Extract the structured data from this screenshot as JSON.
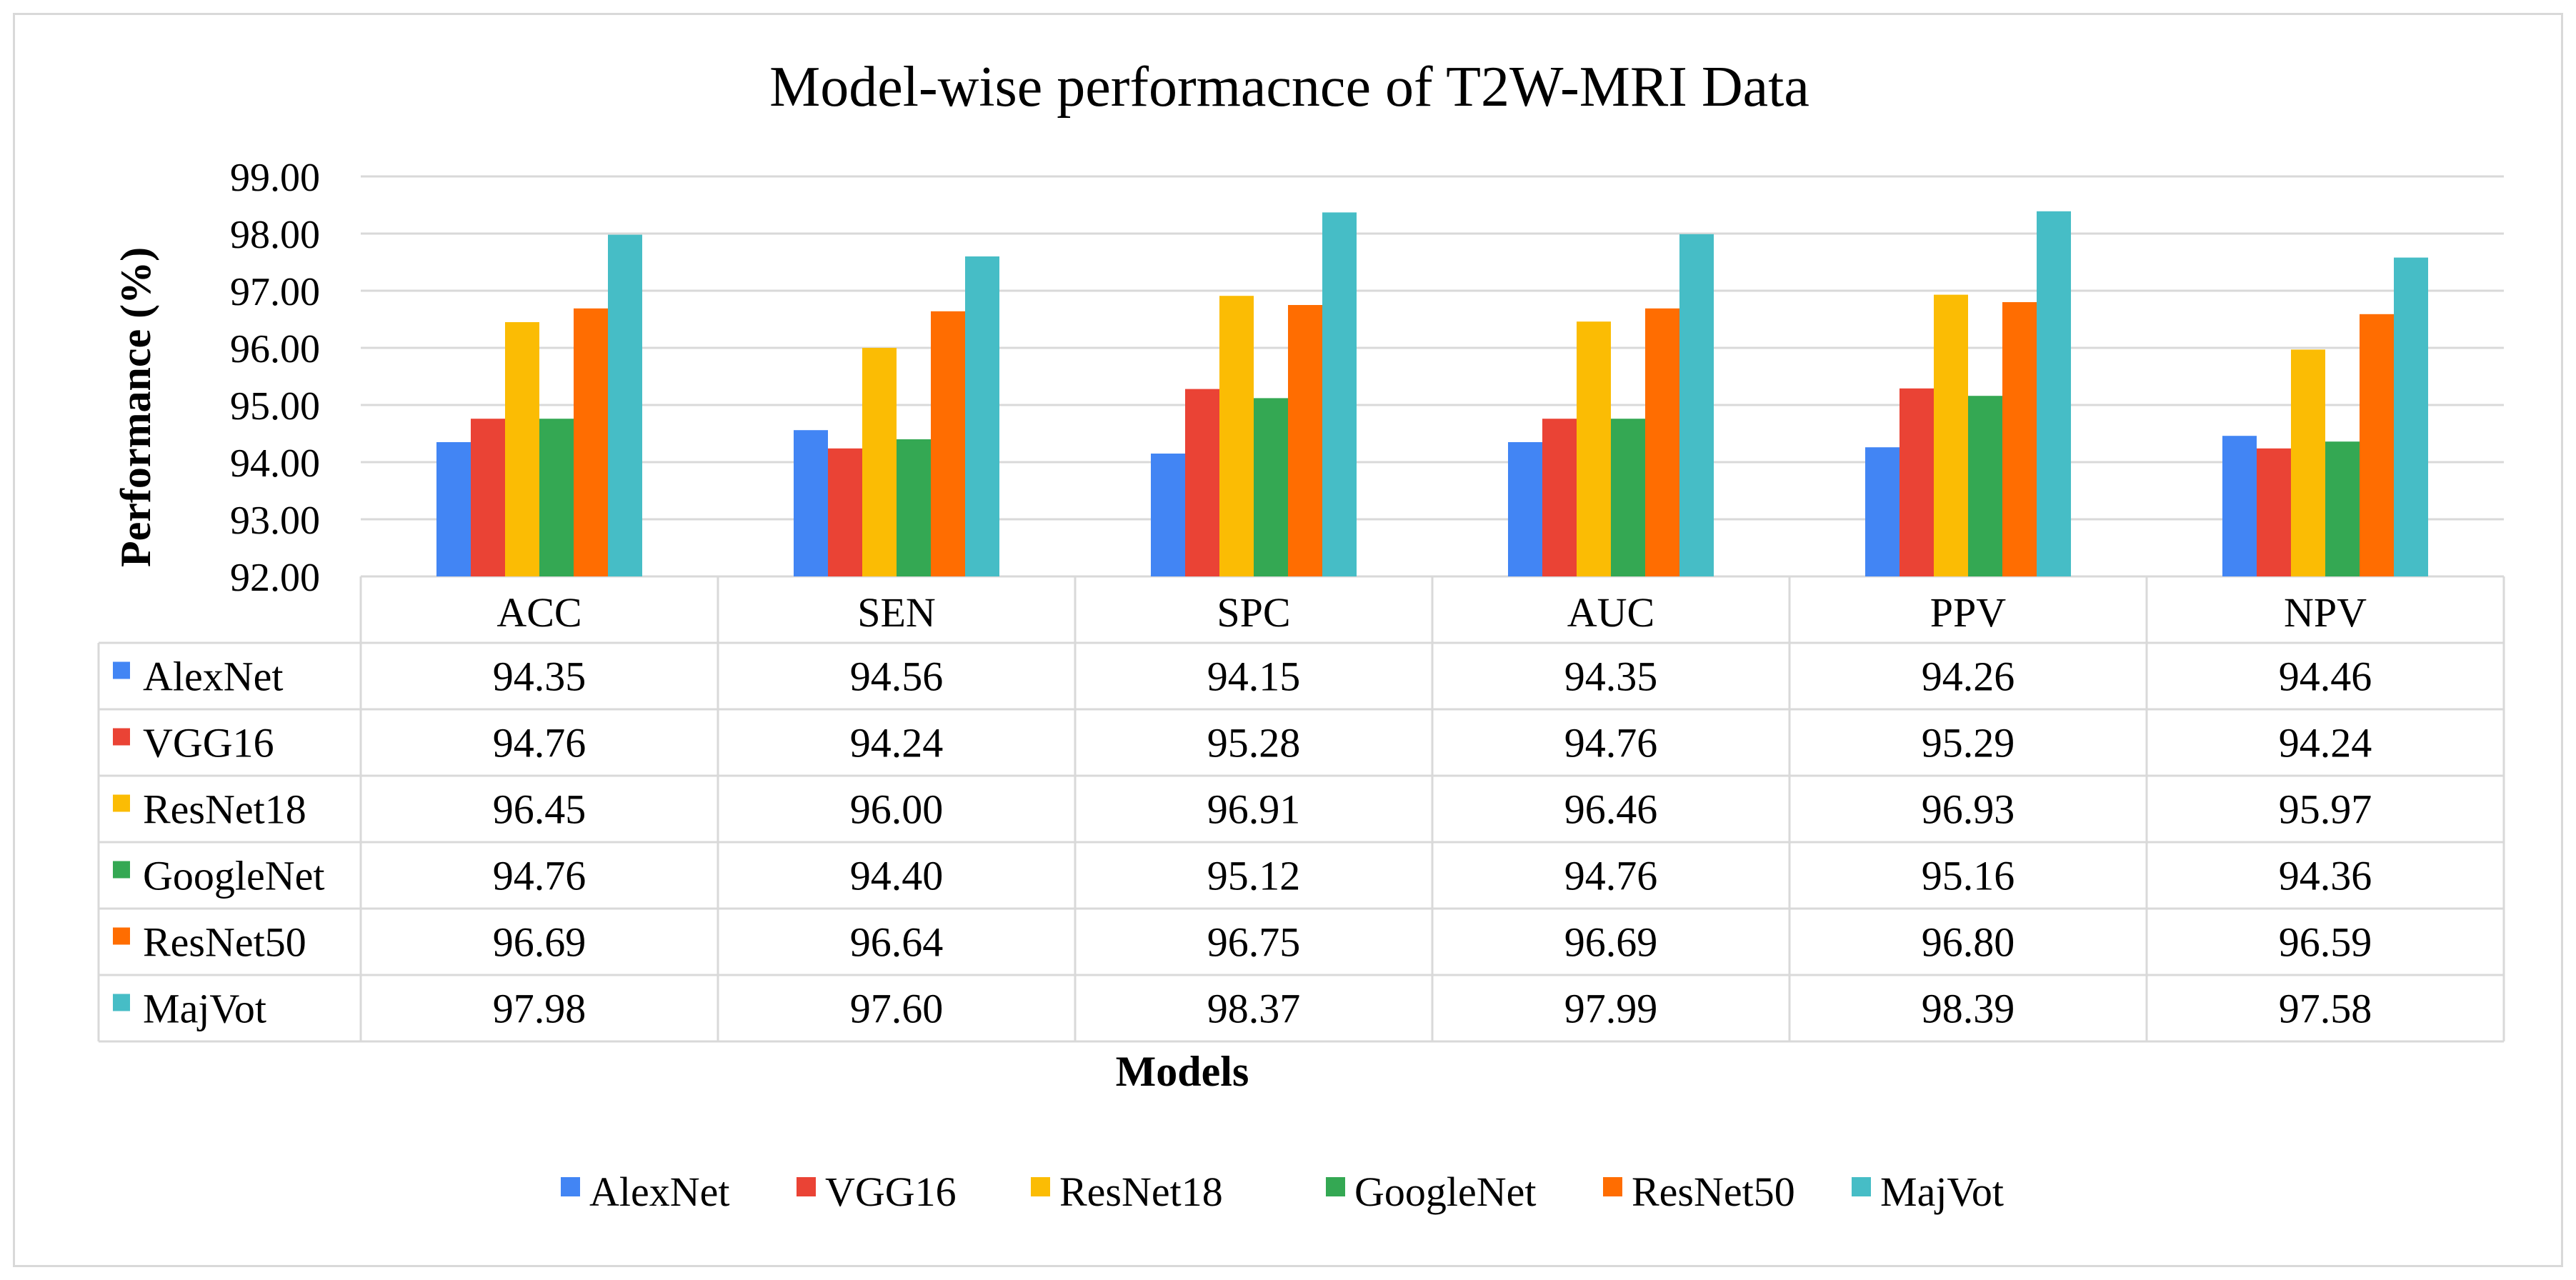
{
  "chart_data": {
    "type": "bar",
    "title": "Model-wise performacnce of T2W-MRI Data",
    "xlabel": "Models",
    "ylabel": "Performance (%)",
    "ylim": [
      92.0,
      99.0
    ],
    "yticks": [
      "92.00",
      "93.00",
      "94.00",
      "95.00",
      "96.00",
      "97.00",
      "98.00",
      "99.00"
    ],
    "grid": true,
    "legend_position": "bottom",
    "data_table": true,
    "categories": [
      "ACC",
      "SEN",
      "SPC",
      "AUC",
      "PPV",
      "NPV"
    ],
    "series": [
      {
        "name": "AlexNet",
        "color": "#4285f4",
        "values": [
          94.35,
          94.56,
          94.15,
          94.35,
          94.26,
          94.46
        ],
        "labels": [
          "94.35",
          "94.56",
          "94.15",
          "94.35",
          "94.26",
          "94.46"
        ]
      },
      {
        "name": "VGG16",
        "color": "#ea4335",
        "values": [
          94.76,
          94.24,
          95.28,
          94.76,
          95.29,
          94.24
        ],
        "labels": [
          "94.76",
          "94.24",
          "95.28",
          "94.76",
          "95.29",
          "94.24"
        ]
      },
      {
        "name": "ResNet18",
        "color": "#fbbc04",
        "values": [
          96.45,
          96.0,
          96.91,
          96.46,
          96.93,
          95.97
        ],
        "labels": [
          "96.45",
          "96.00",
          "96.91",
          "96.46",
          "96.93",
          "95.97"
        ]
      },
      {
        "name": "GoogleNet",
        "color": "#34a853",
        "values": [
          94.76,
          94.4,
          95.12,
          94.76,
          95.16,
          94.36
        ],
        "labels": [
          "94.76",
          "94.40",
          "95.12",
          "94.76",
          "95.16",
          "94.36"
        ]
      },
      {
        "name": "ResNet50",
        "color": "#ff6d01",
        "values": [
          96.69,
          96.64,
          96.75,
          96.69,
          96.8,
          96.59
        ],
        "labels": [
          "96.69",
          "96.64",
          "96.75",
          "96.69",
          "96.80",
          "96.59"
        ]
      },
      {
        "name": "MajVot",
        "color": "#46bdc6",
        "values": [
          97.98,
          97.6,
          98.37,
          97.99,
          98.39,
          97.58
        ],
        "labels": [
          "97.98",
          "97.60",
          "98.37",
          "97.99",
          "98.39",
          "97.58"
        ]
      }
    ]
  }
}
